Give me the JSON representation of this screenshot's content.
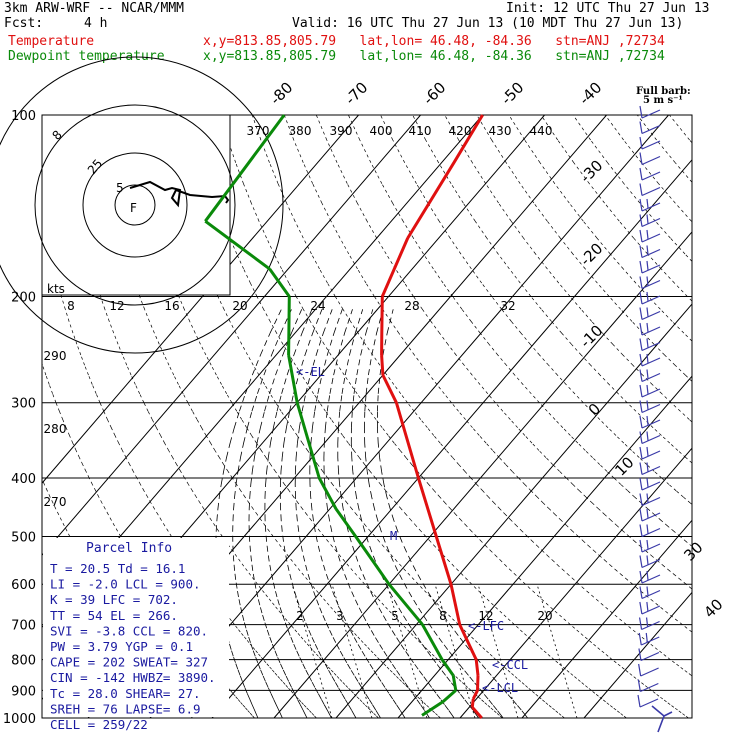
{
  "header": {
    "model": "3km ARW-WRF -- NCAR/MMM",
    "init": "Init: 12 UTC Thu 27 Jun 13",
    "fcst_label": "Fcst:",
    "fcst_value": "4 h",
    "valid": "Valid: 16 UTC Thu 27 Jun 13 (10 MDT Thu 27 Jun 13)",
    "temp_label": "Temperature",
    "dew_label": "Dewpoint temperature",
    "location": "x,y=813.85,805.79   lat,lon= 46.48, -84.36   stn=ANJ ,72734",
    "full_barb_1": "Full barb:",
    "full_barb_2": "5 m s⁻¹"
  },
  "colors": {
    "temperature": "#e01010",
    "dewpoint": "#0a8a0a",
    "annotation": "#1a1aa0"
  },
  "chart_data": {
    "type": "line",
    "pressure_ticks": [
      100,
      200,
      300,
      400,
      500,
      600,
      700,
      800,
      900,
      1000
    ],
    "isotherm_labels": [
      "-80",
      "-70",
      "-60",
      "-50",
      "-40",
      "-30",
      "-20",
      "-10",
      "0",
      "10",
      "20",
      "30",
      "40"
    ],
    "theta_labels": [
      "370",
      "380",
      "390",
      "400",
      "410",
      "420",
      "430",
      "440",
      "290",
      "280",
      "270"
    ],
    "speed_labels": [
      "8",
      "12",
      "16",
      "20",
      "24",
      "28",
      "32"
    ],
    "speed_unit": "kts",
    "mixing_ratio_labels": [
      "2",
      "3",
      "5",
      "8",
      "12",
      "20"
    ],
    "hodo_ring_labels": [
      "5",
      "25",
      "F",
      "8"
    ],
    "levels": [
      {
        "text": "<-EL"
      },
      {
        "text": "<-LFC"
      },
      {
        "text": "<-CCL"
      },
      {
        "text": "<-LCL"
      },
      {
        "text": "M"
      }
    ],
    "series": [
      {
        "name": "Temperature",
        "values": [
          {
            "p": 1000,
            "t": 23.5
          },
          {
            "p": 960,
            "t": 20.5
          },
          {
            "p": 930,
            "t": 19.5
          },
          {
            "p": 900,
            "t": 19
          },
          {
            "p": 850,
            "t": 17
          },
          {
            "p": 800,
            "t": 14.5
          },
          {
            "p": 700,
            "t": 7
          },
          {
            "p": 600,
            "t": 0
          },
          {
            "p": 500,
            "t": -9
          },
          {
            "p": 400,
            "t": -20
          },
          {
            "p": 300,
            "t": -34
          },
          {
            "p": 270,
            "t": -40
          },
          {
            "p": 250,
            "t": -43
          },
          {
            "p": 230,
            "t": -46
          },
          {
            "p": 200,
            "t": -51
          },
          {
            "p": 160,
            "t": -55
          },
          {
            "p": 120,
            "t": -58
          },
          {
            "p": 100,
            "t": -60
          }
        ]
      },
      {
        "name": "Dewpoint temperature",
        "values": [
          {
            "p": 990,
            "t": 13.5
          },
          {
            "p": 940,
            "t": 15
          },
          {
            "p": 900,
            "t": 15.5
          },
          {
            "p": 850,
            "t": 13
          },
          {
            "p": 800,
            "t": 9
          },
          {
            "p": 700,
            "t": 1
          },
          {
            "p": 600,
            "t": -10
          },
          {
            "p": 500,
            "t": -22
          },
          {
            "p": 450,
            "t": -29
          },
          {
            "p": 400,
            "t": -36
          },
          {
            "p": 300,
            "t": -50
          },
          {
            "p": 250,
            "t": -58
          },
          {
            "p": 200,
            "t": -66
          },
          {
            "p": 180,
            "t": -73
          },
          {
            "p": 150,
            "t": -90
          },
          {
            "p": 100,
            "t": -92
          }
        ]
      }
    ]
  },
  "parcel_info": {
    "title": "Parcel Info",
    "rows": [
      "T   =   20.5  Td =  16.1",
      "LI  =   -2.0  LCL =  900.",
      "K   =     39  LFC =  702.",
      "TT  =     54  EL  =  266.",
      "SVI =   -3.8  CCL =  820.",
      "PW  =   3.79  YGP =   0.1",
      "CAPE =   202  SWEAT=  327",
      "CIN  =  -142  HWBZ= 3890.",
      "Tc  =   28.0  SHEAR=  27.",
      "SREH =    76  LAPSE=  6.9",
      "CELL = 259/22"
    ]
  }
}
